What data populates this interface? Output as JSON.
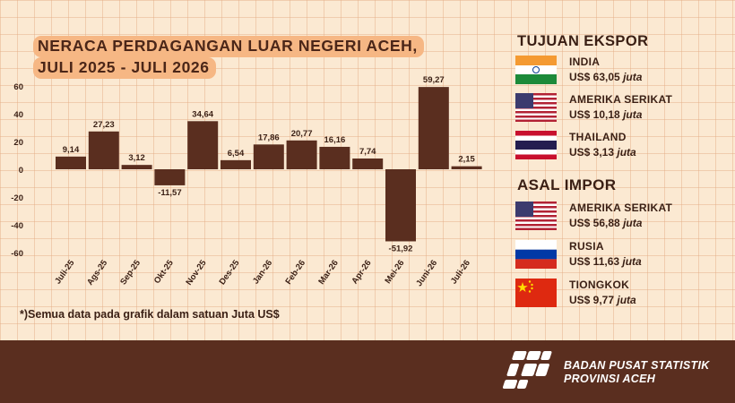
{
  "title_line1": "NERACA PERDAGANGAN LUAR NEGERI ACEH,",
  "title_line2": "JULI 2025 - JULI 2026",
  "chart_data": {
    "type": "bar",
    "title": "NERACA PERDAGANGAN LUAR NEGERI ACEH, JULI 2025 - JULI 2026",
    "categories": [
      "Juli-25",
      "Ags-25",
      "Sep-25",
      "Okt-25",
      "Nov-25",
      "Des-25",
      "Jan-26",
      "Feb-26",
      "Mar-26",
      "Apr-26",
      "Mei-26",
      "Juni-26",
      "Juli-26"
    ],
    "values": [
      9.14,
      27.23,
      3.12,
      -11.57,
      34.64,
      6.54,
      17.86,
      20.77,
      16.16,
      7.74,
      -51.92,
      59.27,
      2.15
    ],
    "value_labels": [
      "9,14",
      "27,23",
      "3,12",
      "-11,57",
      "34,64",
      "6,54",
      "17,86",
      "20,77",
      "16,16",
      "7,74",
      "-51,92",
      "59,27",
      "2,15"
    ],
    "yticks": [
      60,
      40,
      20,
      0,
      -20,
      -40,
      -60
    ],
    "ylim": [
      -60,
      60
    ],
    "bar_color": "#5a2e1f",
    "grid": true,
    "xlabel": "",
    "ylabel": ""
  },
  "footnote": "*)Semua data pada grafik dalam satuan Juta US$",
  "export": {
    "heading": "TUJUAN EKSPOR",
    "items": [
      {
        "country": "INDIA",
        "prefix": "US$ 63,05",
        "unit": "juta",
        "flag": "india-flag"
      },
      {
        "country": "AMERIKA SERIKAT",
        "prefix": "US$ 10,18",
        "unit": "juta",
        "flag": "usa-flag"
      },
      {
        "country": "THAILAND",
        "prefix": "US$ 3,13",
        "unit": "juta",
        "flag": "thailand-flag"
      }
    ]
  },
  "import": {
    "heading": "ASAL IMPOR",
    "items": [
      {
        "country": "AMERIKA SERIKAT",
        "prefix": "US$ 56,88",
        "unit": "juta",
        "flag": "usa-flag"
      },
      {
        "country": "RUSIA",
        "prefix": "US$ 11,63",
        "unit": "juta",
        "flag": "russia-flag"
      },
      {
        "country": "TIONGKOK",
        "prefix": "US$ 9,77",
        "unit": "juta",
        "flag": "china-flag"
      }
    ]
  },
  "footer": {
    "org_line1": "BADAN PUSAT STATISTIK",
    "org_line2": "PROVINSI ACEH",
    "logo_icon": "bps-logo-icon"
  },
  "colors": {
    "background": "#fbe9d2",
    "accent": "#f6b784",
    "dark_brown": "#5a2e1f"
  }
}
